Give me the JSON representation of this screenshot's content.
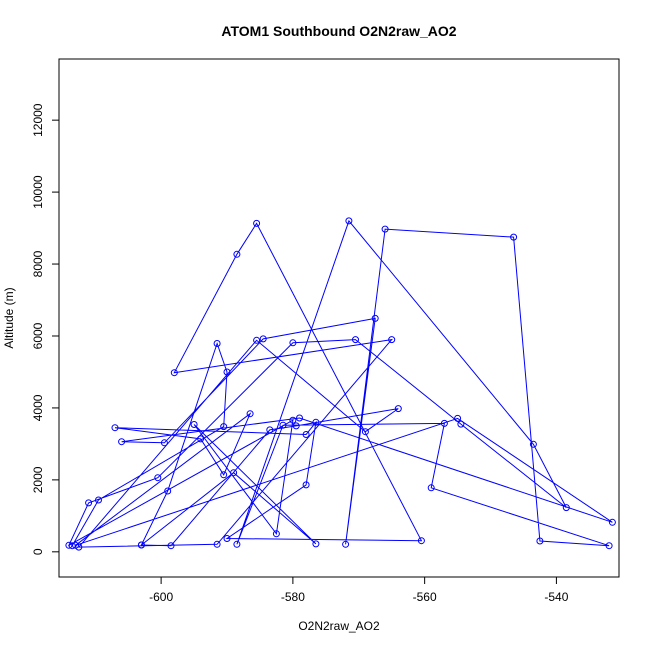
{
  "chart_data": {
    "type": "line",
    "title": "ATOM1 Southbound O2N2raw_AO2",
    "xlabel": "O2N2raw_AO2",
    "ylabel": "Altitude (m)",
    "xlim": [
      -615.5,
      -530.5
    ],
    "ylim": [
      -700,
      13700
    ],
    "x_ticks": [
      -600,
      -580,
      -560,
      -540
    ],
    "x_tick_labels": [
      "-600",
      "-580",
      "-560",
      "-540"
    ],
    "y_ticks": [
      0,
      2000,
      4000,
      6000,
      8000,
      10000,
      12000
    ],
    "y_tick_labels": [
      "0",
      "2000",
      "4000",
      "6000",
      "8000",
      "10000",
      "12000"
    ],
    "grid": false,
    "line_color": "#0000ff",
    "markers": "open-circle",
    "series": [
      {
        "x": [
          -613.5,
          -609.5,
          -590.5,
          -590,
          -591.5,
          -599,
          -603,
          -598.5,
          -583.5,
          -579.5,
          -564,
          -569,
          -585.5,
          -612.5,
          -591.5,
          -565,
          -598,
          -588.5,
          -585.5,
          -560.5,
          -590,
          -578,
          -576.5,
          -578,
          -607,
          -594,
          -590.5,
          -586.5,
          -613,
          -555,
          -531.5,
          -579,
          -606,
          -599.5,
          -584.5,
          -567.5,
          -572,
          -566,
          -546.5,
          -542.5,
          -532,
          -559,
          -557,
          -581.5,
          -588.5,
          -571.5,
          -543.5,
          -538.5,
          -554.5,
          -570.5,
          -580,
          -600.5,
          -611,
          -614,
          -580,
          -582.5,
          -595,
          -576.5,
          -589,
          -603
        ],
        "y": [
          170,
          1440,
          3480,
          5000,
          5790,
          1690,
          190,
          170,
          3390,
          3500,
          3980,
          3340,
          5880,
          130,
          210,
          5900,
          4980,
          8270,
          9130,
          310,
          370,
          1860,
          3600,
          3260,
          3450,
          3140,
          2140,
          3840,
          180,
          3710,
          820,
          3720,
          3060,
          3030,
          5920,
          6490,
          210,
          8970,
          8750,
          300,
          170,
          1780,
          3570,
          3520,
          210,
          9200,
          2990,
          1230,
          3550,
          5900,
          5810,
          2060,
          1360,
          180,
          3660,
          500,
          3540,
          220,
          2200,
          190
        ]
      }
    ]
  }
}
